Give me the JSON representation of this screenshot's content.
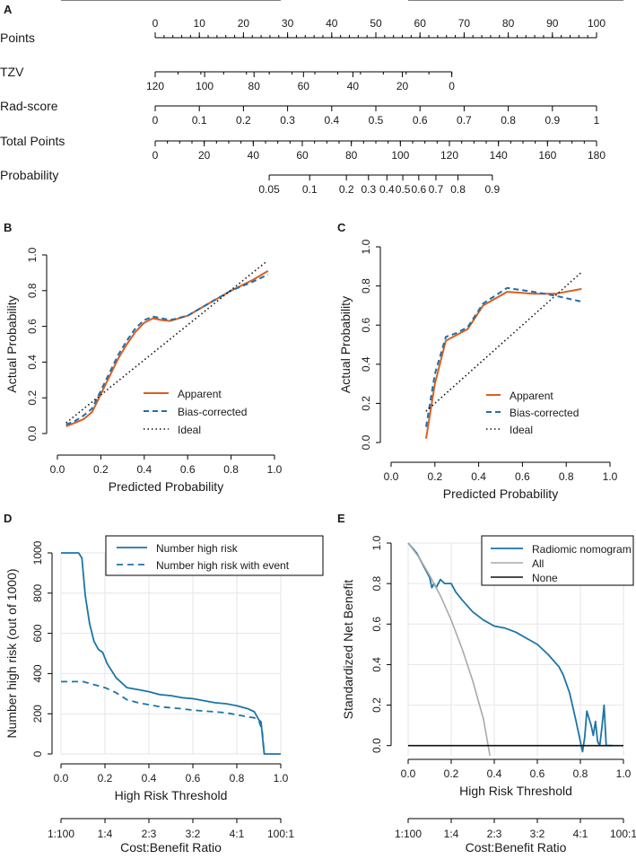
{
  "colors": {
    "orange": "#d95f1e",
    "blue": "#1f6fad",
    "teal": "#1b75a6",
    "gray": "#a9a9a9",
    "black": "#111111"
  },
  "panels": {
    "a": "A",
    "b": "B",
    "c": "C",
    "d": "D",
    "e": "E"
  },
  "chart_data": [
    {
      "id": "A",
      "type": "nomogram",
      "rows": [
        {
          "label": "Points",
          "ticks": [
            {
              "v": 0,
              "t": "0"
            },
            {
              "v": 10,
              "t": "10"
            },
            {
              "v": 20,
              "t": "20"
            },
            {
              "v": 30,
              "t": "30"
            },
            {
              "v": 40,
              "t": "40"
            },
            {
              "v": 50,
              "t": "50"
            },
            {
              "v": 60,
              "t": "60"
            },
            {
              "v": 70,
              "t": "70"
            },
            {
              "v": 80,
              "t": "80"
            },
            {
              "v": 90,
              "t": "90"
            },
            {
              "v": 100,
              "t": "100"
            }
          ],
          "domain": [
            0,
            100
          ],
          "labels_above": true
        },
        {
          "label": "TZV",
          "ticks": [
            {
              "v": 0,
              "t": "120"
            },
            {
              "v": 11.2,
              "t": "100"
            },
            {
              "v": 22.4,
              "t": "80"
            },
            {
              "v": 33.6,
              "t": "60"
            },
            {
              "v": 44.8,
              "t": "40"
            },
            {
              "v": 56,
              "t": "20"
            },
            {
              "v": 67.2,
              "t": "0"
            }
          ],
          "domain": [
            0,
            100
          ],
          "labels_above": false,
          "minor": 13
        },
        {
          "label": "Rad-score",
          "ticks": [
            {
              "v": 0,
              "t": "0"
            },
            {
              "v": 10,
              "t": "0.1"
            },
            {
              "v": 20,
              "t": "0.2"
            },
            {
              "v": 30,
              "t": "0.3"
            },
            {
              "v": 40,
              "t": "0.4"
            },
            {
              "v": 50,
              "t": "0.5"
            },
            {
              "v": 60,
              "t": "0.6"
            },
            {
              "v": 70,
              "t": "0.7"
            },
            {
              "v": 80,
              "t": "0.8"
            },
            {
              "v": 90,
              "t": "0.9"
            },
            {
              "v": 100,
              "t": "1"
            }
          ],
          "domain": [
            0,
            100
          ],
          "labels_above": false
        },
        {
          "label": "Total Points",
          "ticks": [
            {
              "v": 0,
              "t": "0"
            },
            {
              "v": 20,
              "t": "20"
            },
            {
              "v": 40,
              "t": "40"
            },
            {
              "v": 60,
              "t": "60"
            },
            {
              "v": 80,
              "t": "80"
            },
            {
              "v": 100,
              "t": "100"
            },
            {
              "v": 120,
              "t": "120"
            },
            {
              "v": 140,
              "t": "140"
            },
            {
              "v": 160,
              "t": "160"
            },
            {
              "v": 180,
              "t": "180"
            }
          ],
          "domain": [
            0,
            180
          ],
          "labels_above": false,
          "minor": 36
        },
        {
          "label": "Probability",
          "ticks": [
            {
              "v": 46.5,
              "t": "0.05"
            },
            {
              "v": 63,
              "t": "0.1"
            },
            {
              "v": 78,
              "t": "0.2"
            },
            {
              "v": 87,
              "t": "0.3"
            },
            {
              "v": 94.5,
              "t": "0.4"
            },
            {
              "v": 101,
              "t": "0.5"
            },
            {
              "v": 107.5,
              "t": "0.6"
            },
            {
              "v": 114.5,
              "t": "0.7"
            },
            {
              "v": 123.5,
              "t": "0.8"
            },
            {
              "v": 137.5,
              "t": "0.9"
            }
          ],
          "domain": [
            0,
            180
          ],
          "labels_above": false
        }
      ]
    },
    {
      "id": "B",
      "type": "line",
      "xlabel": "Predicted Probability",
      "ylabel": "Actual Probability",
      "xlim": [
        0,
        1
      ],
      "ylim": [
        0,
        1
      ],
      "xticks": [
        "0.0",
        "0.2",
        "0.4",
        "0.6",
        "0.8",
        "1.0"
      ],
      "yticks": [
        "0.0",
        "0.2",
        "0.4",
        "0.6",
        "0.8",
        "1.0"
      ],
      "legend": [
        "Apparent",
        "Bias-corrected",
        "Ideal"
      ],
      "series": [
        {
          "name": "Apparent",
          "style": "solid-orange",
          "points": [
            [
              0.04,
              0.04
            ],
            [
              0.08,
              0.06
            ],
            [
              0.12,
              0.08
            ],
            [
              0.16,
              0.12
            ],
            [
              0.2,
              0.22
            ],
            [
              0.24,
              0.32
            ],
            [
              0.28,
              0.42
            ],
            [
              0.32,
              0.5
            ],
            [
              0.36,
              0.57
            ],
            [
              0.4,
              0.62
            ],
            [
              0.44,
              0.645
            ],
            [
              0.48,
              0.635
            ],
            [
              0.52,
              0.63
            ],
            [
              0.6,
              0.66
            ],
            [
              0.7,
              0.73
            ],
            [
              0.8,
              0.8
            ],
            [
              0.9,
              0.86
            ],
            [
              0.97,
              0.91
            ]
          ]
        },
        {
          "name": "Bias-corrected",
          "style": "dashed-blue",
          "points": [
            [
              0.04,
              0.05
            ],
            [
              0.08,
              0.07
            ],
            [
              0.12,
              0.1
            ],
            [
              0.16,
              0.14
            ],
            [
              0.2,
              0.24
            ],
            [
              0.24,
              0.34
            ],
            [
              0.28,
              0.44
            ],
            [
              0.32,
              0.52
            ],
            [
              0.36,
              0.59
            ],
            [
              0.4,
              0.635
            ],
            [
              0.44,
              0.655
            ],
            [
              0.48,
              0.645
            ],
            [
              0.52,
              0.635
            ],
            [
              0.6,
              0.66
            ],
            [
              0.7,
              0.73
            ],
            [
              0.8,
              0.8
            ],
            [
              0.9,
              0.85
            ],
            [
              0.97,
              0.89
            ]
          ]
        },
        {
          "name": "Ideal",
          "style": "dotted-black",
          "points": [
            [
              0.04,
              0.06
            ],
            [
              0.96,
              0.96
            ]
          ]
        }
      ]
    },
    {
      "id": "C",
      "type": "line",
      "xlabel": "Predicted Probability",
      "ylabel": "Actual Probability",
      "xlim": [
        0,
        1
      ],
      "ylim": [
        0,
        1
      ],
      "xticks": [
        "0.0",
        "0.2",
        "0.4",
        "0.6",
        "0.8",
        "1.0"
      ],
      "yticks": [
        "0.0",
        "0.2",
        "0.4",
        "0.6",
        "0.8",
        "1.0"
      ],
      "legend": [
        "Apparent",
        "Bias-corrected",
        "Ideal"
      ],
      "series": [
        {
          "name": "Apparent",
          "style": "solid-orange",
          "points": [
            [
              0.16,
              0.02
            ],
            [
              0.2,
              0.3
            ],
            [
              0.25,
              0.52
            ],
            [
              0.3,
              0.55
            ],
            [
              0.35,
              0.58
            ],
            [
              0.42,
              0.7
            ],
            [
              0.53,
              0.77
            ],
            [
              0.65,
              0.76
            ],
            [
              0.75,
              0.76
            ],
            [
              0.87,
              0.785
            ]
          ]
        },
        {
          "name": "Bias-corrected",
          "style": "dashed-blue",
          "points": [
            [
              0.16,
              0.08
            ],
            [
              0.2,
              0.35
            ],
            [
              0.25,
              0.54
            ],
            [
              0.3,
              0.56
            ],
            [
              0.35,
              0.59
            ],
            [
              0.42,
              0.71
            ],
            [
              0.53,
              0.79
            ],
            [
              0.65,
              0.77
            ],
            [
              0.75,
              0.75
            ],
            [
              0.87,
              0.72
            ]
          ]
        },
        {
          "name": "Ideal",
          "style": "dotted-black",
          "points": [
            [
              0.16,
              0.16
            ],
            [
              0.87,
              0.87
            ]
          ]
        }
      ]
    },
    {
      "id": "D",
      "type": "line",
      "xlabel": "High Risk Threshold",
      "ylabel": "Number high risk (out of 1000)",
      "xlim": [
        0,
        1
      ],
      "ylim": [
        0,
        1000
      ],
      "xticks": [
        "0.0",
        "0.2",
        "0.4",
        "0.6",
        "0.8",
        "1.0"
      ],
      "yticks": [
        "0",
        "200",
        "400",
        "600",
        "800",
        "1000"
      ],
      "secondary_xlabel": "Cost:Benefit Ratio",
      "secondary_xticks": [
        "1:100",
        "1:4",
        "2:3",
        "3:2",
        "4:1",
        "100:1"
      ],
      "legend": [
        "Number high risk",
        "Number high risk with event"
      ],
      "series": [
        {
          "name": "Number high risk",
          "style": "solid-teal",
          "points": [
            [
              0,
              1000
            ],
            [
              0.08,
              1000
            ],
            [
              0.095,
              975
            ],
            [
              0.11,
              790
            ],
            [
              0.13,
              650
            ],
            [
              0.15,
              560
            ],
            [
              0.17,
              520
            ],
            [
              0.19,
              505
            ],
            [
              0.21,
              450
            ],
            [
              0.25,
              380
            ],
            [
              0.3,
              330
            ],
            [
              0.35,
              320
            ],
            [
              0.4,
              310
            ],
            [
              0.45,
              295
            ],
            [
              0.5,
              290
            ],
            [
              0.55,
              280
            ],
            [
              0.6,
              275
            ],
            [
              0.65,
              265
            ],
            [
              0.7,
              255
            ],
            [
              0.75,
              250
            ],
            [
              0.8,
              240
            ],
            [
              0.85,
              225
            ],
            [
              0.88,
              210
            ],
            [
              0.9,
              170
            ],
            [
              0.91,
              160
            ],
            [
              0.92,
              50
            ],
            [
              0.925,
              0
            ],
            [
              1,
              0
            ]
          ]
        },
        {
          "name": "Number high risk with event",
          "style": "dashed-teal",
          "points": [
            [
              0,
              360
            ],
            [
              0.1,
              360
            ],
            [
              0.15,
              345
            ],
            [
              0.2,
              330
            ],
            [
              0.25,
              305
            ],
            [
              0.3,
              270
            ],
            [
              0.35,
              255
            ],
            [
              0.4,
              245
            ],
            [
              0.45,
              235
            ],
            [
              0.5,
              230
            ],
            [
              0.55,
              225
            ],
            [
              0.6,
              218
            ],
            [
              0.65,
              214
            ],
            [
              0.7,
              210
            ],
            [
              0.75,
              205
            ],
            [
              0.8,
              195
            ],
            [
              0.85,
              185
            ],
            [
              0.88,
              180
            ],
            [
              0.9,
              165
            ],
            [
              0.915,
              120
            ],
            [
              0.925,
              0
            ]
          ]
        }
      ]
    },
    {
      "id": "E",
      "type": "line",
      "xlabel": "High Risk Threshold",
      "ylabel": "Standardized Net Benefit",
      "xlim": [
        0,
        1
      ],
      "ylim": [
        -0.05,
        1
      ],
      "xticks": [
        "0.0",
        "0.2",
        "0.4",
        "0.6",
        "0.8",
        "1.0"
      ],
      "yticks": [
        "0.0",
        "0.2",
        "0.4",
        "0.6",
        "0.8",
        "1.0"
      ],
      "secondary_xlabel": "Cost:Benefit Ratio",
      "secondary_xticks": [
        "1:100",
        "1:4",
        "2:3",
        "3:2",
        "4:1",
        "100:1"
      ],
      "legend": [
        "Radiomic nomogram",
        "All",
        "None"
      ],
      "series": [
        {
          "name": "Radiomic nomogram",
          "style": "solid-teal",
          "points": [
            [
              0,
              1
            ],
            [
              0.04,
              0.95
            ],
            [
              0.08,
              0.87
            ],
            [
              0.1,
              0.83
            ],
            [
              0.11,
              0.78
            ],
            [
              0.12,
              0.8
            ],
            [
              0.13,
              0.78
            ],
            [
              0.15,
              0.82
            ],
            [
              0.17,
              0.8
            ],
            [
              0.2,
              0.8
            ],
            [
              0.22,
              0.76
            ],
            [
              0.25,
              0.72
            ],
            [
              0.3,
              0.66
            ],
            [
              0.35,
              0.62
            ],
            [
              0.4,
              0.59
            ],
            [
              0.45,
              0.58
            ],
            [
              0.5,
              0.56
            ],
            [
              0.55,
              0.53
            ],
            [
              0.6,
              0.5
            ],
            [
              0.65,
              0.45
            ],
            [
              0.7,
              0.39
            ],
            [
              0.72,
              0.35
            ],
            [
              0.75,
              0.26
            ],
            [
              0.78,
              0.12
            ],
            [
              0.8,
              0.02
            ],
            [
              0.81,
              -0.03
            ],
            [
              0.82,
              0.04
            ],
            [
              0.83,
              0.17
            ],
            [
              0.85,
              0.1
            ],
            [
              0.86,
              0.05
            ],
            [
              0.87,
              0.12
            ],
            [
              0.88,
              0.02
            ],
            [
              0.89,
              0
            ],
            [
              0.9,
              0.09
            ],
            [
              0.91,
              0.2
            ],
            [
              0.92,
              0
            ],
            [
              0.95,
              0
            ]
          ]
        },
        {
          "name": "All",
          "style": "solid-gray",
          "points": [
            [
              0,
              1
            ],
            [
              0.05,
              0.93
            ],
            [
              0.1,
              0.84
            ],
            [
              0.15,
              0.74
            ],
            [
              0.2,
              0.62
            ],
            [
              0.25,
              0.48
            ],
            [
              0.3,
              0.32
            ],
            [
              0.35,
              0.13
            ],
            [
              0.38,
              -0.05
            ]
          ]
        },
        {
          "name": "None",
          "style": "solid-black",
          "points": [
            [
              0,
              0
            ],
            [
              1,
              0
            ]
          ]
        }
      ]
    }
  ]
}
